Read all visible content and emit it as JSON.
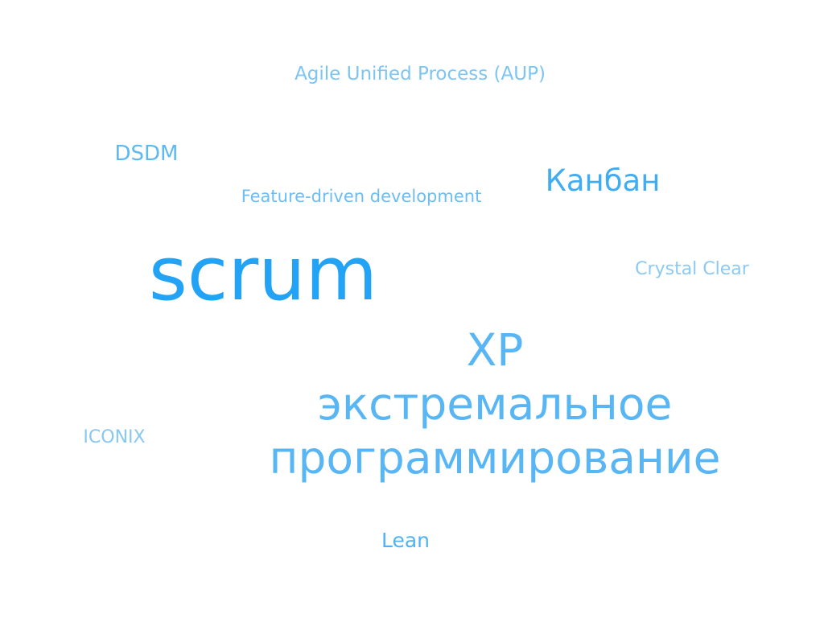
{
  "words": {
    "aup": {
      "text": "Agile Unified Process (AUP)",
      "color": "#7cc4f2"
    },
    "dsdm": {
      "text": "DSDM",
      "color": "#5eb8f2"
    },
    "fdd": {
      "text": "Feature-driven development",
      "color": "#6bbdf2"
    },
    "kanban": {
      "text": "Канбан",
      "color": "#40adf2"
    },
    "scrum": {
      "text": "scrum",
      "color": "#22a3f5"
    },
    "crystal": {
      "text": "Crystal Clear",
      "color": "#8ccaf2"
    },
    "xp": {
      "line1": "XP",
      "line2": "экстремальное",
      "line3": "программирование",
      "color": "#58b6f5"
    },
    "iconix": {
      "text": "ICONIX",
      "color": "#86c8f2"
    },
    "lean": {
      "text": "Lean",
      "color": "#4fb3f2"
    }
  }
}
